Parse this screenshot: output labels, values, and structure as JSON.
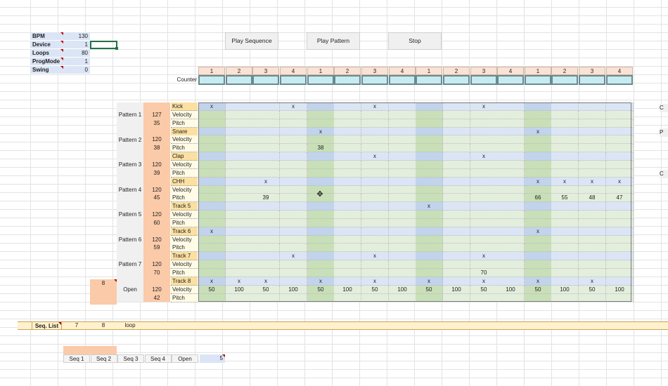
{
  "params": [
    {
      "label": "BPM",
      "value": "130"
    },
    {
      "label": "Device",
      "value": "1"
    },
    {
      "label": "Loops",
      "value": "80"
    },
    {
      "label": "ProgMode",
      "value": "1"
    },
    {
      "label": "Swing",
      "value": "0"
    }
  ],
  "buttons": {
    "play_sequence": "Play Sequence",
    "play_pattern": "Play Pattern",
    "stop": "Stop"
  },
  "beat_headers": [
    "1",
    "2",
    "3",
    "4",
    "1",
    "2",
    "3",
    "4",
    "1",
    "2",
    "3",
    "4",
    "1",
    "2",
    "3",
    "4"
  ],
  "counter_label": "Counter",
  "patterns": [
    {
      "name": "Pattern 1",
      "velocity": "127",
      "pitch": "35",
      "track": "Kick",
      "vel_label": "Velocity",
      "pitch_label": "Pitch"
    },
    {
      "name": "Pattern 2",
      "velocity": "120",
      "pitch": "38",
      "track": "Snare",
      "vel_label": "Velocity",
      "pitch_label": "Pitch"
    },
    {
      "name": "Pattern 3",
      "velocity": "120",
      "pitch": "39",
      "track": "Clap",
      "vel_label": "Velocity",
      "pitch_label": "Pitch"
    },
    {
      "name": "Pattern 4",
      "velocity": "120",
      "pitch": "45",
      "track": "CHH",
      "vel_label": "Velocity",
      "pitch_label": "Pitch"
    },
    {
      "name": "Pattern 5",
      "velocity": "120",
      "pitch": "60",
      "track": "Track 5",
      "vel_label": "Velocity",
      "pitch_label": "Pitch"
    },
    {
      "name": "Pattern 6",
      "velocity": "120",
      "pitch": "59",
      "track": "Track 6",
      "vel_label": "Velocity",
      "pitch_label": "Pitch"
    },
    {
      "name": "Pattern 7",
      "velocity": "120",
      "pitch": "70",
      "track": "Track 7",
      "vel_label": "Velocity",
      "pitch_label": "Pitch"
    },
    {
      "name": "Open",
      "velocity": "120",
      "pitch": "42",
      "track": "Track 8",
      "vel_label": "Velocity",
      "pitch_label": "Pitch"
    }
  ],
  "step_cells": [
    {
      "row": 0,
      "col": 0,
      "text": "x"
    },
    {
      "row": 0,
      "col": 3,
      "text": "x"
    },
    {
      "row": 0,
      "col": 6,
      "text": "x"
    },
    {
      "row": 0,
      "col": 10,
      "text": "x"
    },
    {
      "row": 3,
      "col": 4,
      "text": "x"
    },
    {
      "row": 3,
      "col": 12,
      "text": "x"
    },
    {
      "row": 5,
      "col": 4,
      "text": "38"
    },
    {
      "row": 6,
      "col": 6,
      "text": "x"
    },
    {
      "row": 6,
      "col": 10,
      "text": "x"
    },
    {
      "row": 9,
      "col": 2,
      "text": "x"
    },
    {
      "row": 9,
      "col": 12,
      "text": "x"
    },
    {
      "row": 9,
      "col": 13,
      "text": "x"
    },
    {
      "row": 9,
      "col": 14,
      "text": "x"
    },
    {
      "row": 9,
      "col": 15,
      "text": "x"
    },
    {
      "row": 11,
      "col": 2,
      "text": "39"
    },
    {
      "row": 11,
      "col": 12,
      "text": "66"
    },
    {
      "row": 11,
      "col": 13,
      "text": "55"
    },
    {
      "row": 11,
      "col": 14,
      "text": "48"
    },
    {
      "row": 11,
      "col": 15,
      "text": "47"
    },
    {
      "row": 12,
      "col": 8,
      "text": "x"
    },
    {
      "row": 15,
      "col": 0,
      "text": "x"
    },
    {
      "row": 15,
      "col": 12,
      "text": "x"
    },
    {
      "row": 18,
      "col": 3,
      "text": "x"
    },
    {
      "row": 18,
      "col": 6,
      "text": "x"
    },
    {
      "row": 18,
      "col": 10,
      "text": "x"
    },
    {
      "row": 20,
      "col": 10,
      "text": "70"
    },
    {
      "row": 21,
      "col": 0,
      "text": "x"
    },
    {
      "row": 21,
      "col": 1,
      "text": "x"
    },
    {
      "row": 21,
      "col": 2,
      "text": "x"
    },
    {
      "row": 21,
      "col": 4,
      "text": "x"
    },
    {
      "row": 21,
      "col": 6,
      "text": "x"
    },
    {
      "row": 21,
      "col": 8,
      "text": "x"
    },
    {
      "row": 21,
      "col": 10,
      "text": "x"
    },
    {
      "row": 21,
      "col": 12,
      "text": "x"
    },
    {
      "row": 21,
      "col": 14,
      "text": "x"
    },
    {
      "row": 22,
      "col": 0,
      "text": "50"
    },
    {
      "row": 22,
      "col": 1,
      "text": "100"
    },
    {
      "row": 22,
      "col": 2,
      "text": "50"
    },
    {
      "row": 22,
      "col": 3,
      "text": "100"
    },
    {
      "row": 22,
      "col": 4,
      "text": "50"
    },
    {
      "row": 22,
      "col": 5,
      "text": "100"
    },
    {
      "row": 22,
      "col": 6,
      "text": "50"
    },
    {
      "row": 22,
      "col": 7,
      "text": "100"
    },
    {
      "row": 22,
      "col": 8,
      "text": "50"
    },
    {
      "row": 22,
      "col": 9,
      "text": "100"
    },
    {
      "row": 22,
      "col": 10,
      "text": "50"
    },
    {
      "row": 22,
      "col": 11,
      "text": "100"
    },
    {
      "row": 22,
      "col": 12,
      "text": "50"
    },
    {
      "row": 22,
      "col": 13,
      "text": "100"
    },
    {
      "row": 22,
      "col": 14,
      "text": "50"
    },
    {
      "row": 22,
      "col": 15,
      "text": "100"
    }
  ],
  "open_count": "8",
  "seq_list": {
    "label": "Seq. List",
    "values": [
      "7",
      "8"
    ],
    "loop": "loop"
  },
  "seq_tabs": [
    "Seq 1",
    "Seq 2",
    "Seq 3",
    "Seq 4",
    "Open"
  ],
  "seq_value": "5",
  "right_edge": [
    "C",
    "P",
    "C"
  ]
}
